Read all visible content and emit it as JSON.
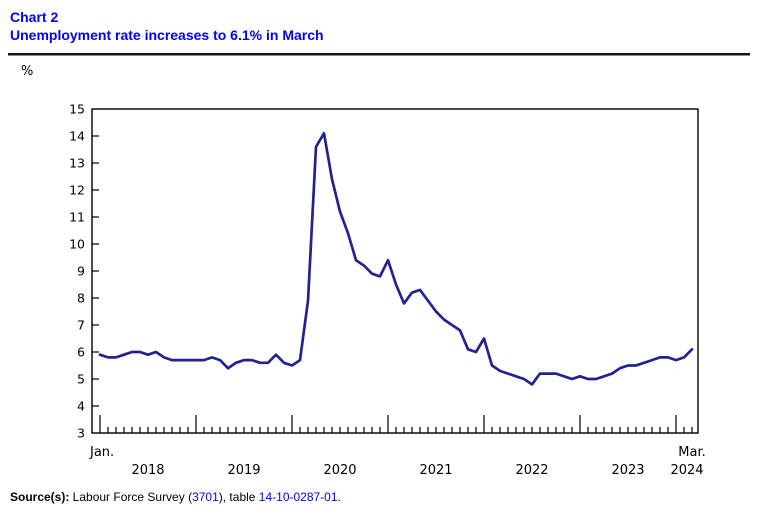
{
  "header": {
    "chart_label": "Chart 2",
    "title": "Unemployment rate increases to 6.1% in March",
    "title_color": "#0000ff"
  },
  "y_axis_unit": "%",
  "source": {
    "prefix": "Source(s):",
    "text1": " Labour Force Survey (",
    "link1": "3701",
    "text2": "), table ",
    "link2": "14-10-0287-01",
    "text3": ".",
    "link_color": "#0000ff"
  },
  "chart_data": {
    "type": "line",
    "series_name": "Unemployment rate",
    "unit": "%",
    "title": "Unemployment rate increases to 6.1% in March",
    "x_start": "2018-01",
    "x_end": "2024-03",
    "x_first_label": "Jan.",
    "x_last_label": "Mar.",
    "year_labels": [
      "2018",
      "2019",
      "2020",
      "2021",
      "2022",
      "2023",
      "2024"
    ],
    "ylim": [
      3,
      15
    ],
    "yticks": [
      3,
      4,
      5,
      6,
      7,
      8,
      9,
      10,
      11,
      12,
      13,
      14,
      15
    ],
    "grid": false,
    "legend": "none",
    "line_color": "#23238f",
    "axis_color": "#000000",
    "values": [
      5.9,
      5.8,
      5.8,
      5.9,
      6.0,
      6.0,
      5.9,
      6.0,
      5.8,
      5.7,
      5.7,
      5.7,
      5.7,
      5.7,
      5.8,
      5.7,
      5.4,
      5.6,
      5.7,
      5.7,
      5.6,
      5.6,
      5.9,
      5.6,
      5.5,
      5.7,
      7.9,
      13.6,
      14.1,
      12.4,
      11.2,
      10.4,
      9.4,
      9.2,
      8.9,
      8.8,
      9.4,
      8.5,
      7.8,
      8.2,
      8.3,
      7.9,
      7.5,
      7.2,
      7.0,
      6.8,
      6.1,
      6.0,
      6.5,
      5.5,
      5.3,
      5.2,
      5.1,
      5.0,
      4.8,
      5.2,
      5.2,
      5.2,
      5.1,
      5.0,
      5.1,
      5.0,
      5.0,
      5.1,
      5.2,
      5.4,
      5.5,
      5.5,
      5.6,
      5.7,
      5.8,
      5.8,
      5.7,
      5.8,
      6.1
    ]
  }
}
